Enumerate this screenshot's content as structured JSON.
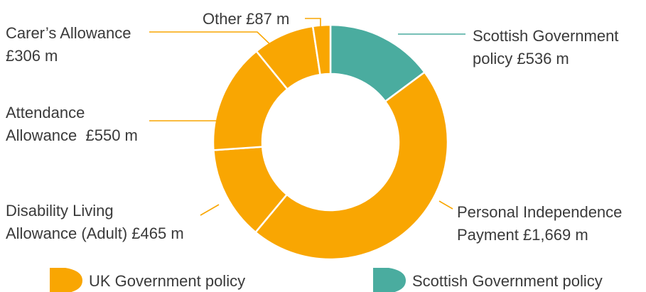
{
  "chart_data": {
    "type": "pie",
    "variant": "donut",
    "slices": [
      {
        "label_lines": [
          "Scottish Government",
          "policy £536 m"
        ],
        "value": 536,
        "group": "scottish"
      },
      {
        "label_lines": [
          "Personal Independence",
          "Payment £1,669 m"
        ],
        "value": 1669,
        "group": "uk"
      },
      {
        "label_lines": [
          "Disability Living",
          "Allowance (Adult) £465 m"
        ],
        "value": 465,
        "group": "uk"
      },
      {
        "label_lines": [
          "Attendance",
          "Allowance  £550 m"
        ],
        "value": 550,
        "group": "uk"
      },
      {
        "label_lines": [
          "Carer’s Allowance",
          "£306 m"
        ],
        "value": 306,
        "group": "uk"
      },
      {
        "label_lines": [
          "Other £87 m"
        ],
        "value": 87,
        "group": "uk"
      }
    ],
    "legend": {
      "placement": "bottom",
      "items": [
        {
          "label": "UK Government policy",
          "group": "uk"
        },
        {
          "label": "Scottish Government policy",
          "group": "scottish"
        }
      ]
    },
    "colors": {
      "uk": "#f9a602",
      "scottish": "#4aac9f"
    }
  }
}
